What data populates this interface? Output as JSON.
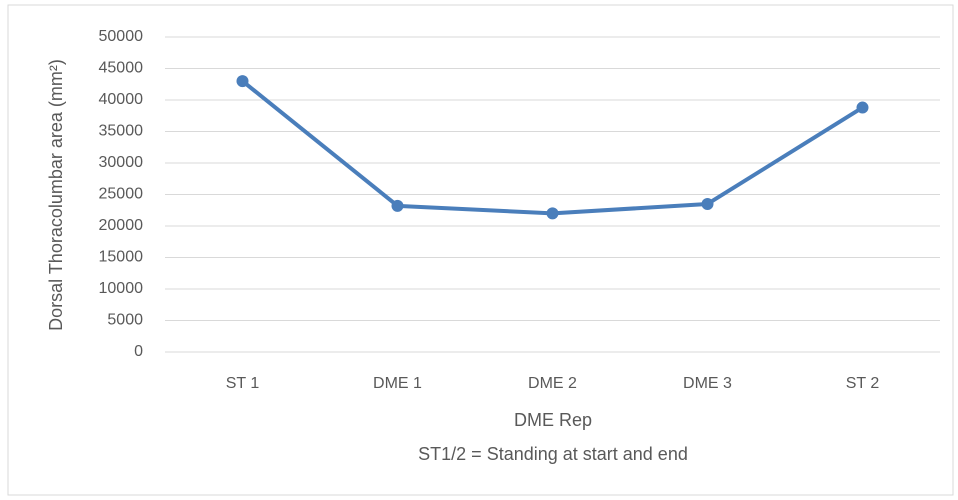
{
  "chart_data": {
    "type": "line",
    "categories": [
      "ST 1",
      "DME 1",
      "DME 2",
      "DME 3",
      "ST 2"
    ],
    "series": [
      {
        "name": "Dorsal Thoracolumbar area",
        "color": "#4a7ebb",
        "values": [
          43000,
          23200,
          22000,
          23500,
          38800
        ]
      }
    ],
    "ylim": [
      0,
      50000
    ],
    "yticks": [
      0,
      5000,
      10000,
      15000,
      20000,
      25000,
      30000,
      35000,
      40000,
      45000,
      50000
    ],
    "grid": true,
    "y_label": "Dorsal Thoracolumbar area (mm²)",
    "x_label": "DME Rep",
    "annotation": "ST1/2 = Standing at start and end"
  }
}
